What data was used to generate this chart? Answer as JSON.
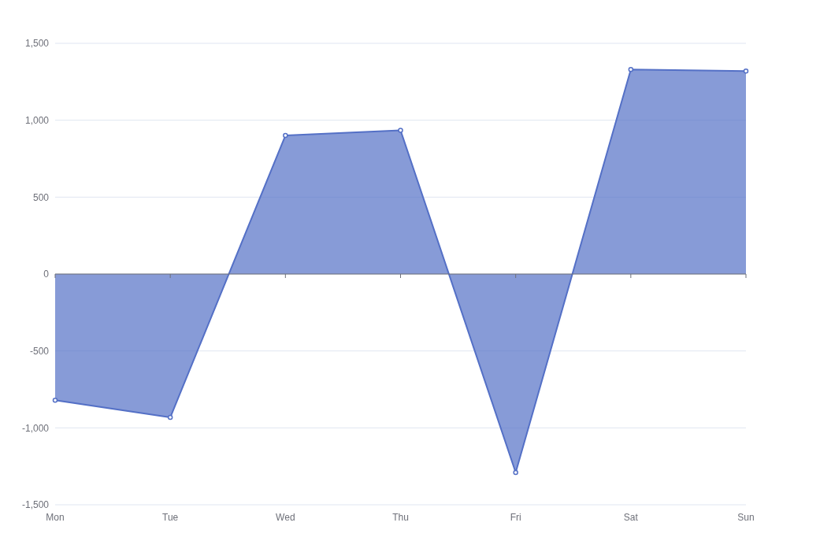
{
  "chart_data": {
    "type": "area",
    "categories": [
      "Mon",
      "Tue",
      "Wed",
      "Thu",
      "Fri",
      "Sat",
      "Sun"
    ],
    "series": [
      {
        "color": "#5470c6",
        "values": [
          -820,
          -932,
          901,
          934,
          -1290,
          1330,
          1320
        ]
      }
    ],
    "ylim": [
      -1500,
      1500
    ],
    "yticks": [
      {
        "value": -1500,
        "label": "-1,500"
      },
      {
        "value": -1000,
        "label": "-1,000"
      },
      -500,
      0,
      500,
      {
        "value": 1000,
        "label": "1,000"
      },
      {
        "value": 1500,
        "label": "1,500"
      }
    ],
    "grid": "y",
    "marker": "circle"
  }
}
